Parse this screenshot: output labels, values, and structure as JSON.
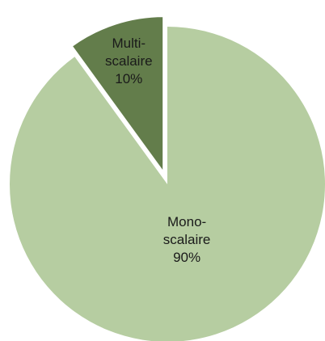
{
  "chart_data": {
    "type": "pie",
    "categories": [
      "Multi-scalaire",
      "Mono-scalaire"
    ],
    "values": [
      10,
      90
    ],
    "value_labels": [
      "10%",
      "90%"
    ],
    "colors": [
      "#637d4b",
      "#b6cda1"
    ]
  }
}
